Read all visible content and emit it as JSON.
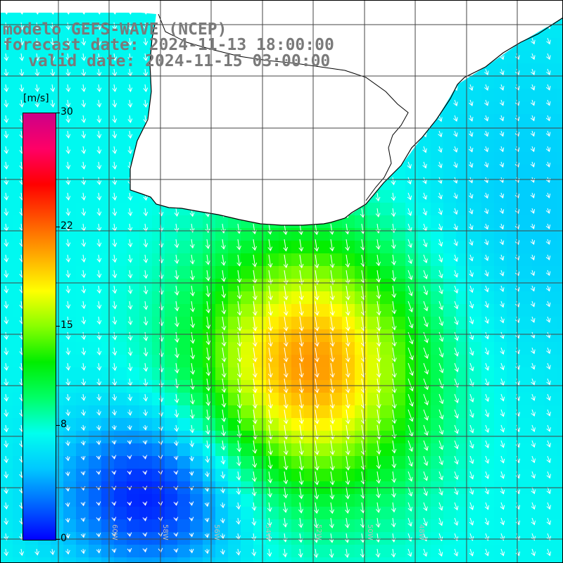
{
  "title": {
    "line1": "modelo GEFS-WAVE (NCEP)",
    "line2": "forecast date: 2024-11-13 18:00:00",
    "line3": "valid date: 2024-11-15 03:00:00"
  },
  "colorbar": {
    "units": "[m/s]",
    "min": 0,
    "max": 30,
    "ticks": [
      {
        "label": "30",
        "value": 30
      },
      {
        "label": "22",
        "value": 22
      },
      {
        "label": "15",
        "value": 15
      },
      {
        "label": "8",
        "value": 8
      },
      {
        "label": "0",
        "value": 0
      }
    ],
    "stops": [
      "#0000ff",
      "#0066ff",
      "#00c8ff",
      "#00ffee",
      "#00ff66",
      "#00ee00",
      "#88ff00",
      "#ffff00",
      "#ffaa00",
      "#ff5500",
      "#ff0000",
      "#ff0066",
      "#cc0088"
    ]
  },
  "map": {
    "land_color": "#ffffff",
    "coastline_color": "#000000",
    "grid_color": "#444444",
    "longitude_labels": [
      "60W",
      "58W",
      "56W",
      "54W",
      "52W",
      "50W",
      "48W"
    ],
    "wind_direction": "NNE to SSW (southward)"
  }
}
